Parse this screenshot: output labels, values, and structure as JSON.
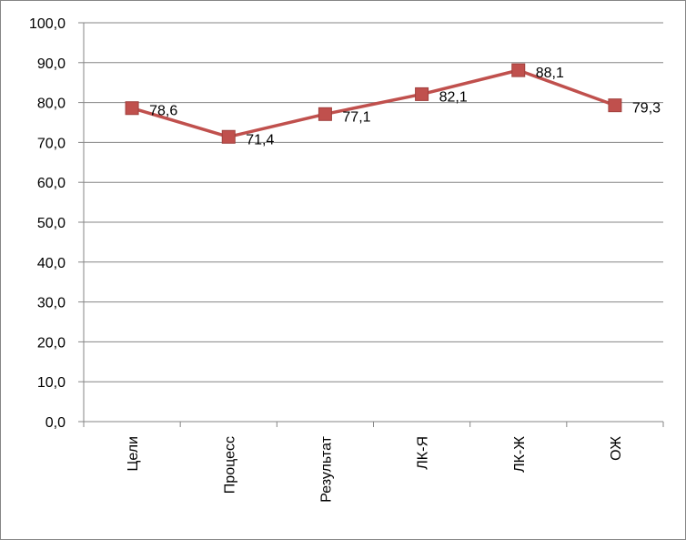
{
  "chart_data": {
    "type": "line",
    "categories": [
      "Цели",
      "Процесс",
      "Результат",
      "ЛК-Я",
      "ЛК-Ж",
      "ОЖ"
    ],
    "values": [
      78.6,
      71.4,
      77.1,
      82.1,
      88.1,
      79.3
    ],
    "data_labels": [
      "78,6",
      "71,4",
      "77,1",
      "82,1",
      "88,1",
      "79,3"
    ],
    "y_ticks": [
      0,
      10,
      20,
      30,
      40,
      50,
      60,
      70,
      80,
      90,
      100
    ],
    "y_tick_labels": [
      "0,0",
      "10,0",
      "20,0",
      "30,0",
      "40,0",
      "50,0",
      "60,0",
      "70,0",
      "80,0",
      "90,0",
      "100,0"
    ],
    "ylim": [
      0,
      100
    ],
    "grid": true,
    "legend": "none",
    "title": "",
    "xlabel": "",
    "ylabel": "",
    "colors": {
      "line": "#C0504D",
      "marker_fill": "#C0504D",
      "marker_stroke": "#A0403D",
      "grid": "#868686",
      "axis": "#868686"
    }
  }
}
